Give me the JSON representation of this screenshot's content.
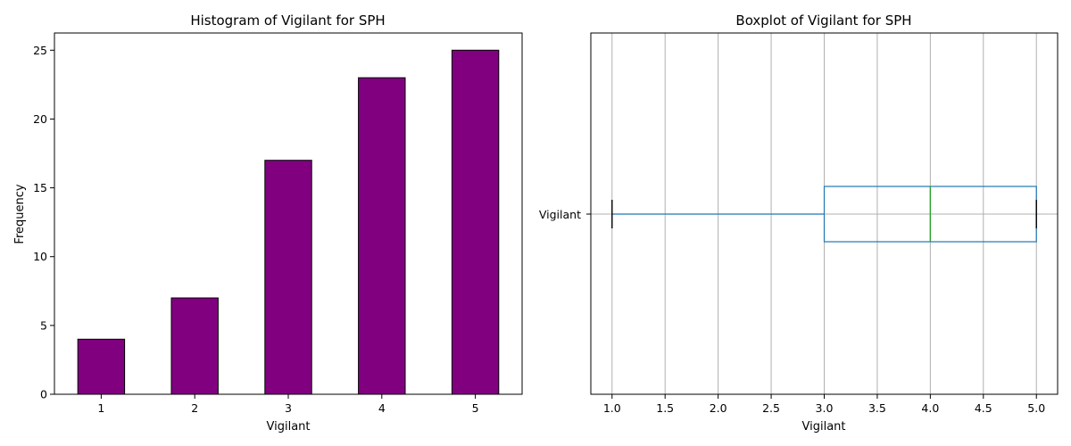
{
  "chart_data": [
    {
      "type": "bar",
      "title": "Histogram of Vigilant for SPH",
      "xlabel": "Vigilant",
      "ylabel": "Frequency",
      "categories": [
        "1",
        "2",
        "3",
        "4",
        "5"
      ],
      "values": [
        4,
        7,
        17,
        23,
        25
      ],
      "ylim": [
        0,
        26.25
      ],
      "yticks": [
        0,
        5,
        10,
        15,
        20,
        25
      ],
      "bar_color": "#800080",
      "edge_color": "#000000",
      "grid": false
    },
    {
      "type": "boxplot",
      "orientation": "horizontal",
      "title": "Boxplot of Vigilant for SPH",
      "xlabel": "Vigilant",
      "category": "Vigilant",
      "stats": {
        "whisker_low": 1.0,
        "q1": 3.0,
        "median": 4.0,
        "q3": 5.0,
        "whisker_high": 5.0
      },
      "xlim": [
        0.8,
        5.2
      ],
      "xticks": [
        "1.0",
        "1.5",
        "2.0",
        "2.5",
        "3.0",
        "3.5",
        "4.0",
        "4.5",
        "5.0"
      ],
      "box_color": "#1f77b4",
      "median_color": "#2ca02c",
      "cap_color": "#000000",
      "grid": true
    }
  ]
}
